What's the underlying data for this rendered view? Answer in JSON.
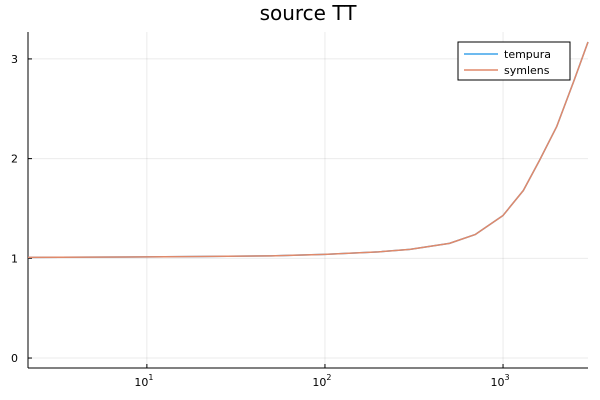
{
  "chart_data": {
    "type": "line",
    "title": "source TT",
    "xscale": "log10",
    "xlim": [
      2.15,
      3000
    ],
    "ylim": [
      -0.1,
      3.27
    ],
    "xticks": [
      {
        "value": 10,
        "base": "10",
        "exp": "1"
      },
      {
        "value": 100,
        "base": "10",
        "exp": "2"
      },
      {
        "value": 1000,
        "base": "10",
        "exp": "3"
      }
    ],
    "yticks": [
      {
        "value": 0,
        "label": "0"
      },
      {
        "value": 1,
        "label": "1"
      },
      {
        "value": 2,
        "label": "2"
      },
      {
        "value": 3,
        "label": "3"
      }
    ],
    "grid": true,
    "legend_position": "top-right",
    "series": [
      {
        "name": "tempura",
        "color": "#3da4ea",
        "x": [
          2.15,
          5,
          10,
          20,
          50,
          100,
          200,
          300,
          500,
          700,
          1000,
          1300,
          1600,
          2000,
          2500,
          3000
        ],
        "y": [
          1.01,
          1.012,
          1.014,
          1.018,
          1.025,
          1.04,
          1.065,
          1.09,
          1.15,
          1.24,
          1.43,
          1.68,
          1.98,
          2.32,
          2.78,
          3.17
        ]
      },
      {
        "name": "symlens",
        "color": "#e0896a",
        "x": [
          2.15,
          5,
          10,
          20,
          50,
          100,
          200,
          300,
          500,
          700,
          1000,
          1300,
          1600,
          2000,
          2500,
          3000
        ],
        "y": [
          1.01,
          1.012,
          1.014,
          1.018,
          1.025,
          1.04,
          1.065,
          1.09,
          1.15,
          1.24,
          1.43,
          1.68,
          1.98,
          2.32,
          2.78,
          3.17
        ]
      }
    ]
  }
}
